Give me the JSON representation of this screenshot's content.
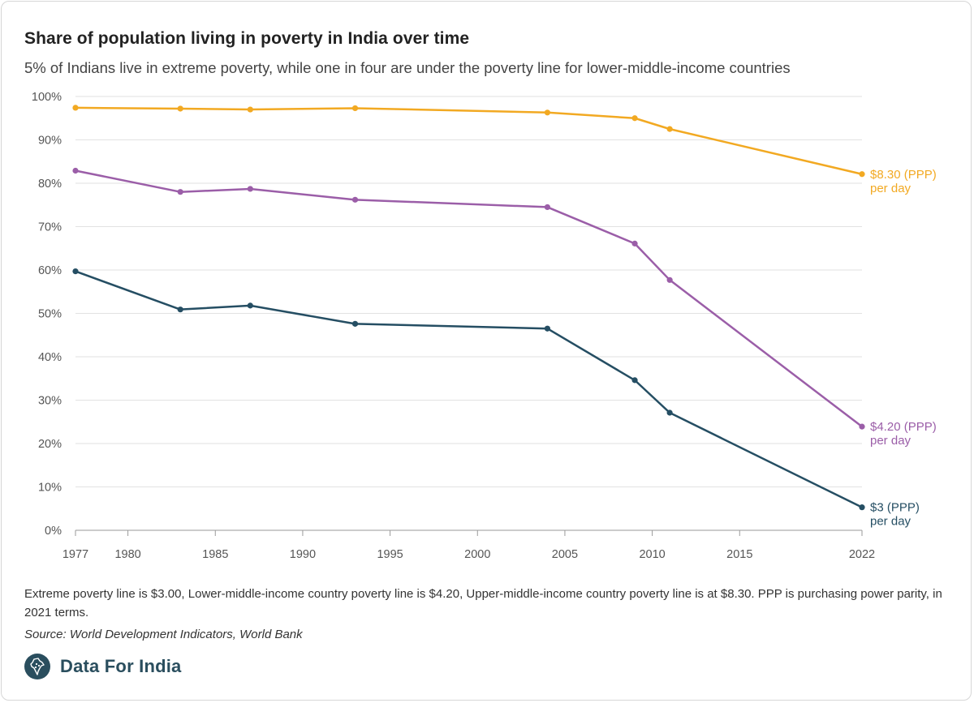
{
  "header": {
    "title": "Share of population living in poverty in India over time",
    "subtitle": "5% of Indians live in extreme poverty, while one in four are under the poverty line for lower-middle-income countries"
  },
  "chart_data": {
    "type": "line",
    "title": "Share of population living in poverty in India over time",
    "xlabel": "",
    "ylabel": "",
    "xlim": [
      1977,
      2022
    ],
    "ylim": [
      0,
      100
    ],
    "x_ticks": [
      1977,
      1980,
      1985,
      1990,
      1995,
      2000,
      2005,
      2010,
      2015,
      2022
    ],
    "y_ticks": [
      0,
      10,
      20,
      30,
      40,
      50,
      60,
      70,
      80,
      90,
      100
    ],
    "y_tick_labels": [
      "0%",
      "10%",
      "20%",
      "30%",
      "40%",
      "50%",
      "60%",
      "70%",
      "80%",
      "90%",
      "100%"
    ],
    "grid": true,
    "x": [
      1977,
      1983,
      1987,
      1993,
      2004,
      2009,
      2011,
      2022
    ],
    "series": [
      {
        "name": "$8.30 (PPP) per day",
        "label_line1": "$8.30 (PPP)",
        "label_line2": "per day",
        "color": "#f2a922",
        "values": [
          97.4,
          97.2,
          97.0,
          97.3,
          96.3,
          95.0,
          92.5,
          82.1
        ]
      },
      {
        "name": "$4.20 (PPP) per day",
        "label_line1": "$4.20 (PPP)",
        "label_line2": "per day",
        "color": "#9b5ea8",
        "values": [
          82.9,
          78.0,
          78.7,
          76.2,
          74.5,
          66.1,
          57.7,
          23.9
        ]
      },
      {
        "name": "$3 (PPP) per day",
        "label_line1": "$3 (PPP)",
        "label_line2": "per day",
        "color": "#254e63",
        "values": [
          59.7,
          50.9,
          51.8,
          47.6,
          46.5,
          34.6,
          27.1,
          5.3
        ]
      }
    ]
  },
  "footer": {
    "note": "Extreme poverty line is $3.00, Lower-middle-income country poverty line is $4.20, Upper-middle-income country poverty line is at $8.30. PPP is purchasing power parity, in 2021 terms.",
    "source": "Source: World Development Indicators, World Bank",
    "brand": "Data For India"
  },
  "colors": {
    "grid": "#e2e2e2",
    "axis": "#555555",
    "brand": "#2a4e5e"
  }
}
